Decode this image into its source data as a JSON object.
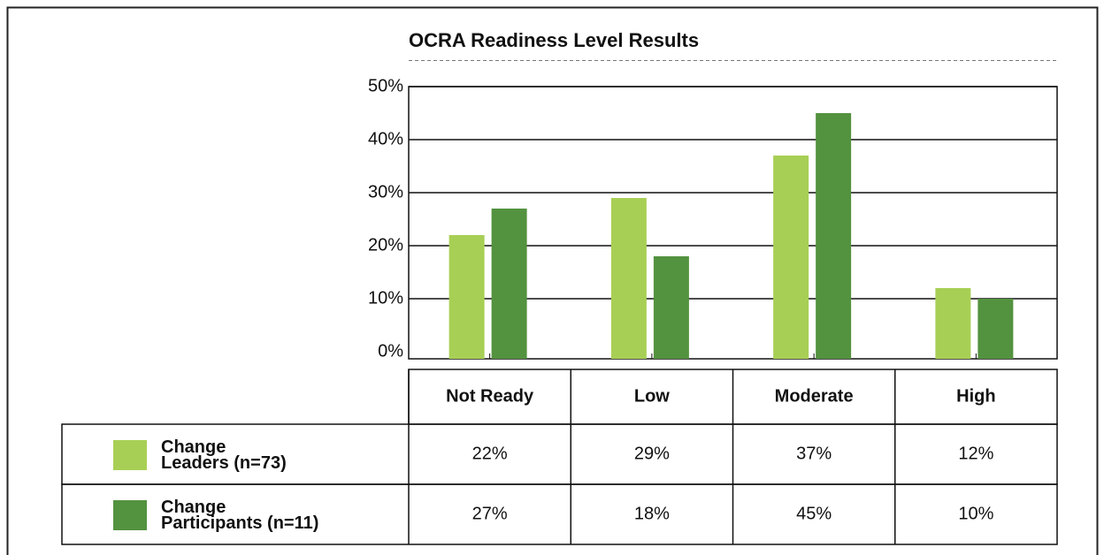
{
  "chart_data": {
    "type": "bar",
    "title": "OCRA Readiness Level Results",
    "categories": [
      "Not Ready",
      "Low",
      "Moderate",
      "High"
    ],
    "series": [
      {
        "name": "Change\nLeaders (n=73)",
        "color": "#a8cf55",
        "values": [
          22,
          29,
          37,
          12
        ],
        "value_labels": [
          "22%",
          "29%",
          "37%",
          "12%"
        ]
      },
      {
        "name": "Change\nParticipants (n=11)",
        "color": "#53923f",
        "values": [
          27,
          18,
          45,
          10
        ],
        "value_labels": [
          "27%",
          "18%",
          "45%",
          "10%"
        ]
      }
    ],
    "ylim": [
      0,
      50
    ],
    "yticks": [
      {
        "value": 0,
        "label": "0%"
      },
      {
        "value": 10,
        "label": "10%"
      },
      {
        "value": 20,
        "label": "20%"
      },
      {
        "value": 30,
        "label": "30%"
      },
      {
        "value": 40,
        "label": "40%"
      },
      {
        "value": 50,
        "label": "50%"
      }
    ],
    "grid": true
  }
}
